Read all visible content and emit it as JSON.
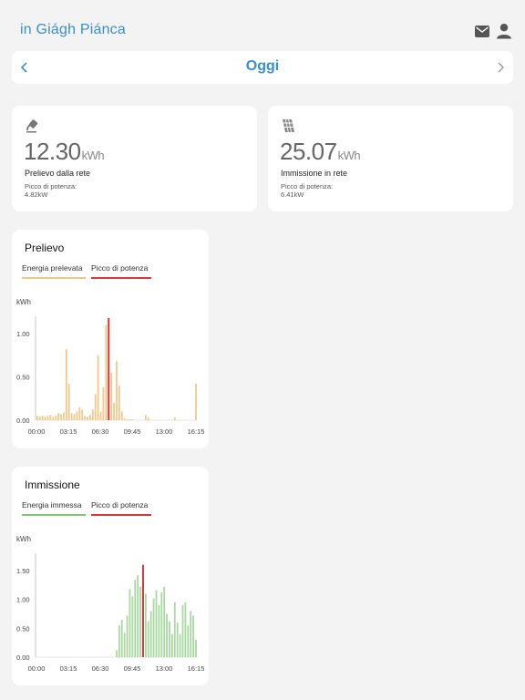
{
  "header": {
    "brand": "in Giágh Piánca",
    "icons": [
      "mail-icon",
      "user-icon"
    ]
  },
  "day_nav": {
    "title": "Oggi",
    "prev_icon": "chevron-left-icon",
    "next_icon": "chevron-right-icon"
  },
  "kpis": [
    {
      "icon": "grid-plug-icon",
      "value": "12.30",
      "unit": "kWh",
      "label": "Prelievo dalla rete",
      "peak_label": "Picco di potenza:",
      "peak_value": "4.82kW"
    },
    {
      "icon": "solar-panel-icon",
      "value": "25.07",
      "unit": "kWh",
      "label": "Immissione in rete",
      "peak_label": "Picco di potenza:",
      "peak_value": "6.41kW"
    }
  ],
  "colors": {
    "accent": "#3a8fc9",
    "withdraw_bar": "#f2c98a",
    "withdraw_legend": "#e8c98a",
    "inject_bar": "#a9d8a0",
    "inject_legend": "#7fc57a",
    "peak": "#d9383a"
  },
  "charts": [
    {
      "title": "Prelievo",
      "legend": [
        "Energia prelevata",
        "Picco di potenza"
      ]
    },
    {
      "title": "Immissione",
      "legend": [
        "Energia immessa",
        "Picco di potenza"
      ]
    }
  ],
  "chart_data": [
    {
      "type": "bar",
      "title": "Prelievo",
      "ylabel": "kWh",
      "ylim": [
        0,
        1.2
      ],
      "yticks": [
        "0.00",
        "0.50",
        "1.00"
      ],
      "xticks": [
        "00:00",
        "03:15",
        "06:30",
        "09:45",
        "13:00",
        "16:15"
      ],
      "series": [
        {
          "name": "Energia prelevata",
          "values": [
            0.05,
            0.04,
            0.05,
            0.04,
            0.05,
            0.06,
            0.04,
            0.05,
            0.08,
            0.07,
            0.09,
            0.82,
            0.42,
            0.08,
            0.07,
            0.1,
            0.15,
            0.12,
            0.05,
            0.04,
            0.06,
            0.12,
            0.3,
            0.75,
            0.1,
            0.38,
            1.1,
            1.18,
            0.55,
            0.2,
            0.68,
            0.4,
            0.1,
            0.02,
            0.01,
            0.01,
            0.01,
            0,
            0,
            0,
            0,
            0.06,
            0.03,
            0,
            0,
            0,
            0,
            0,
            0,
            0,
            0,
            0,
            0.03,
            0,
            0,
            0,
            0,
            0,
            0,
            0,
            0.42
          ]
        },
        {
          "name": "Picco di potenza",
          "values": [
            1.18
          ]
        }
      ]
    },
    {
      "type": "bar",
      "title": "Immissione",
      "ylabel": "kWh",
      "ylim": [
        0,
        1.8
      ],
      "yticks": [
        "0.00",
        "0.50",
        "1.00",
        "1.50"
      ],
      "xticks": [
        "00:00",
        "03:15",
        "06:30",
        "09:45",
        "13:00",
        "16:15"
      ],
      "series": [
        {
          "name": "Energia immessa",
          "values": [
            0,
            0,
            0,
            0,
            0,
            0,
            0,
            0,
            0,
            0,
            0,
            0,
            0,
            0,
            0,
            0,
            0,
            0,
            0,
            0,
            0,
            0,
            0,
            0,
            0,
            0,
            0,
            0,
            0,
            0,
            0.12,
            0.55,
            0.65,
            0.42,
            0.72,
            1.18,
            1.05,
            1.34,
            1.42,
            1.22,
            1.5,
            1.1,
            0.62,
            0.8,
            1.02,
            1.16,
            0.9,
            1.12,
            1.22,
            0.75,
            0.62,
            0.4,
            0.95,
            0.6,
            0.4,
            0.9,
            0.95,
            0.55,
            0.8,
            0.72,
            0.3
          ]
        },
        {
          "name": "Picco di potenza",
          "values": [
            1.6
          ]
        }
      ]
    }
  ]
}
